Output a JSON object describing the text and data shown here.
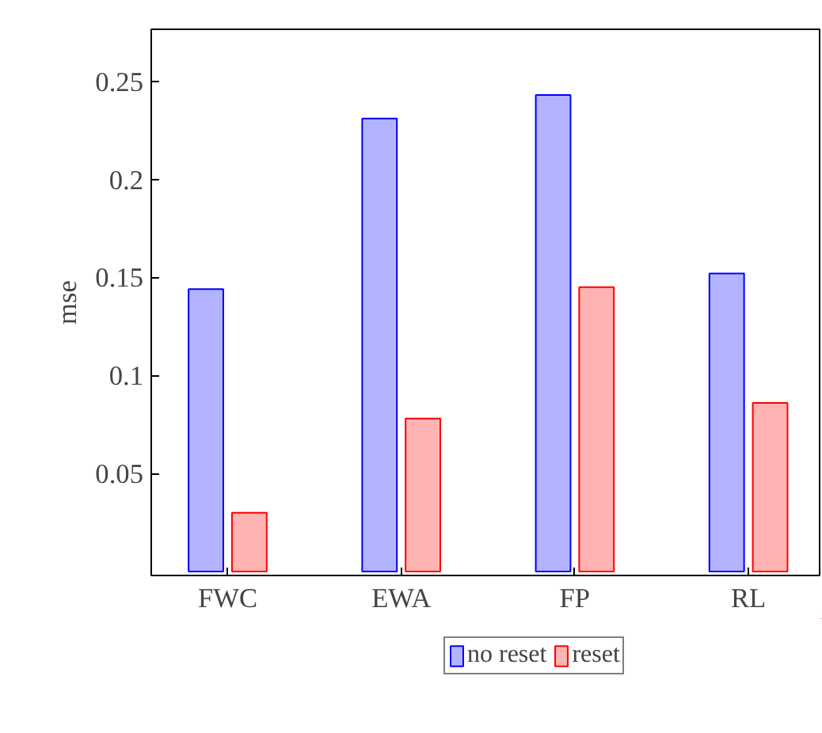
{
  "chart_data": {
    "type": "bar",
    "categories": [
      "FWC",
      "EWA",
      "FP",
      "RL"
    ],
    "ylabel": "mse",
    "series": [
      {
        "name": "no reset",
        "color": "#b3b3ff",
        "values": [
          0.144,
          0.231,
          0.243,
          0.152
        ]
      },
      {
        "name": "reset",
        "color": "#ffb3b3",
        "values": [
          0.03,
          0.078,
          0.145,
          0.086
        ]
      }
    ],
    "ylim": [
      -0.002,
      0.2765
    ],
    "yticks": [
      0.05,
      0.1,
      0.15,
      0.2,
      0.25
    ],
    "grid": false,
    "legend": "bottom"
  }
}
